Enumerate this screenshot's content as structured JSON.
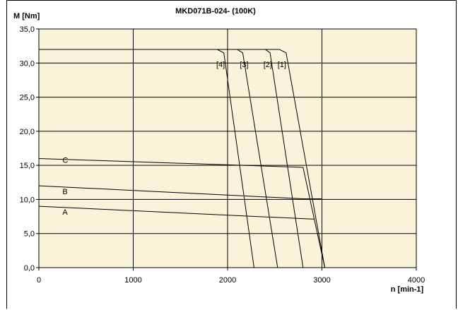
{
  "chart_data": {
    "type": "line",
    "title": "MKD071B-024- (100K)",
    "ylabel": "M [Nm]",
    "xlabel": "n [min-1]",
    "xlim": [
      0,
      4000
    ],
    "ylim": [
      0,
      35
    ],
    "x_ticks": [
      0,
      1000,
      2000,
      3000,
      4000
    ],
    "x_tick_labels": [
      "0",
      "1000",
      "2000",
      "3000",
      "4000"
    ],
    "y_ticks": [
      0,
      5,
      10,
      15,
      20,
      25,
      30,
      35
    ],
    "y_tick_labels": [
      "0,0",
      "5,0",
      "10,0",
      "15,0",
      "20,0",
      "25,0",
      "30,0",
      "35,0"
    ],
    "grid": true,
    "plot_background": "#fbf3d9",
    "series": [
      {
        "name": "[1]",
        "label_at": [
          2530,
          29.8
        ],
        "points": [
          [
            0,
            32
          ],
          [
            2550,
            32
          ],
          [
            2620,
            31.5
          ],
          [
            3030,
            0
          ]
        ]
      },
      {
        "name": "[2]",
        "label_at": [
          2380,
          29.8
        ],
        "points": [
          [
            0,
            32
          ],
          [
            2400,
            32
          ],
          [
            2450,
            31.5
          ],
          [
            2800,
            0
          ]
        ]
      },
      {
        "name": "[3]",
        "label_at": [
          2130,
          29.8
        ],
        "points": [
          [
            0,
            32
          ],
          [
            2100,
            32
          ],
          [
            2160,
            31.5
          ],
          [
            2530,
            0
          ]
        ]
      },
      {
        "name": "[4]",
        "label_at": [
          1880,
          29.8
        ],
        "points": [
          [
            0,
            32
          ],
          [
            1890,
            32
          ],
          [
            1960,
            31.5
          ],
          [
            2280,
            0
          ]
        ]
      },
      {
        "name": "C",
        "label_at": [
          250,
          15.8
        ],
        "points": [
          [
            0,
            16
          ],
          [
            2800,
            14.7
          ],
          [
            3030,
            0
          ]
        ]
      },
      {
        "name": "B",
        "label_at": [
          250,
          11.2
        ],
        "points": [
          [
            0,
            12
          ],
          [
            2800,
            10.1
          ],
          [
            3000,
            10.1
          ]
        ]
      },
      {
        "name": "A",
        "label_at": [
          250,
          8.2
        ],
        "points": [
          [
            0,
            9
          ],
          [
            2920,
            7.1
          ]
        ]
      }
    ]
  }
}
